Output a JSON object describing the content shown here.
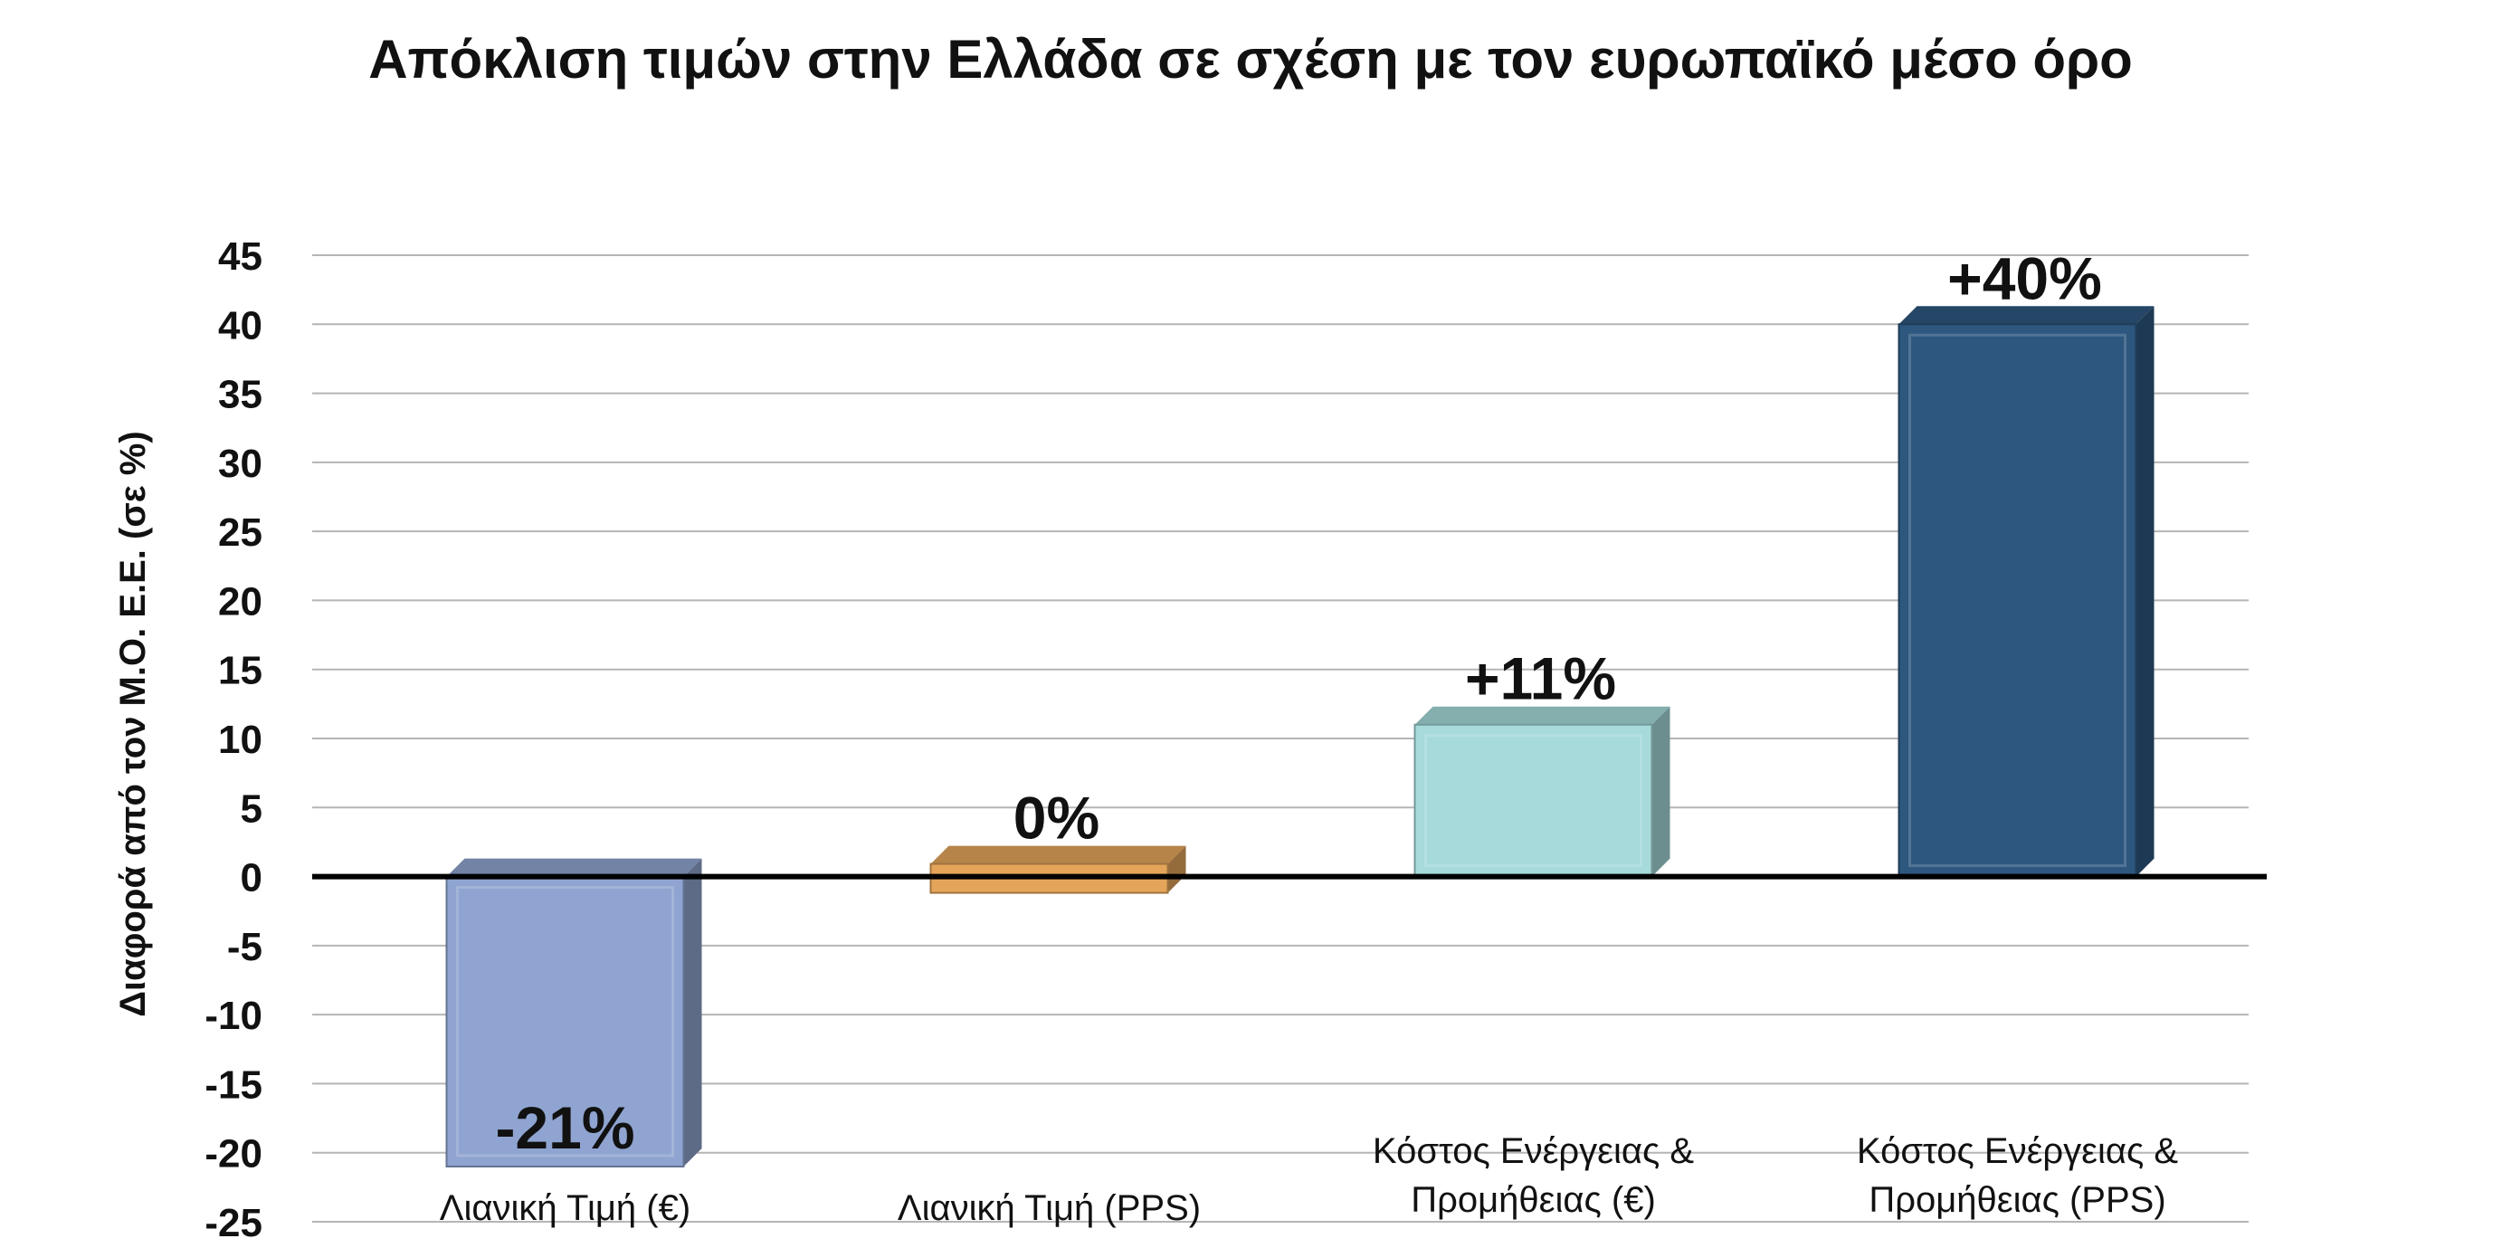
{
  "chart_data": {
    "type": "bar",
    "title": "Απόκλιση τιμών στην Ελλάδα σε σχέση με τον ευρωπαϊκό μέσο όρο",
    "xlabel": "",
    "ylabel": "Διαφορά από τον Μ.Ο. Ε.Ε. (σε %)",
    "ylim": [
      -25,
      45
    ],
    "yticks": [
      45,
      40,
      35,
      30,
      25,
      20,
      15,
      10,
      5,
      0,
      -5,
      -10,
      -15,
      -20,
      -25
    ],
    "grid": true,
    "categories": [
      [
        "Λιανική Τιμή (€)"
      ],
      [
        "Λιανική Τιμή (PPS)"
      ],
      [
        "Κόστος Ενέργειας &",
        "Προμήθειας (€)"
      ],
      [
        "Κόστος Ενέργειας &",
        "Προμήθειας (PPS)"
      ]
    ],
    "values": [
      -21,
      0,
      11,
      40
    ],
    "data_labels": [
      "-21%",
      "0%",
      "+11%",
      "+40%"
    ],
    "colors": [
      "#8fa4d0",
      "#e4a55a",
      "#a6dadb",
      "#2e577f"
    ]
  }
}
